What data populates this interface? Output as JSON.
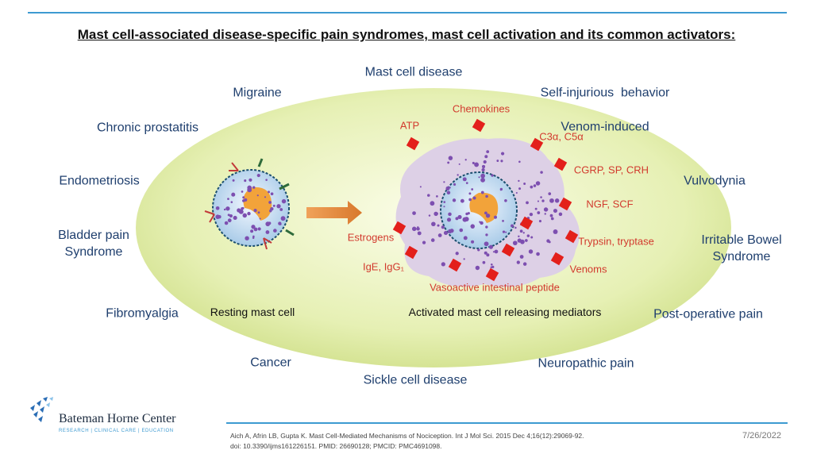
{
  "title": "Mast cell-associated disease-specific pain syndromes, mast cell activation and its common activators:",
  "syndromes": [
    "Mast cell disease",
    "Migraine",
    "Self-injurious  behavior",
    "Chronic prostatitis",
    "Venom-induced",
    "Endometriosis",
    "Vulvodynia",
    "Bladder pain\nSyndrome",
    "Irritable Bowel\nSyndrome",
    "Fibromyalgia",
    "Post-operative pain",
    "Cancer",
    "Neuropathic pain",
    "Sickle cell disease"
  ],
  "mediators": [
    "ATP",
    "Chemokines",
    "C3α, C5α",
    "CGRP, SP, CRH",
    "NGF, SCF",
    "Trypsin, tryptase",
    "Venoms",
    "Vasoactive intestinal peptide",
    "Estrogens",
    "IgE, IgG₁"
  ],
  "captions": {
    "resting": "Resting mast cell",
    "activated": "Activated mast cell releasing mediators"
  },
  "colors": {
    "accent": "#3d9ad1",
    "ellipse": "#e3eeb0",
    "mediator": "#d23a2e",
    "syndrome": "#1f3f6e"
  },
  "footer": {
    "logo": {
      "name": "Bateman Horne Center",
      "tagline": "RESEARCH | CLINICAL CARE | EDUCATION"
    },
    "citation_line1": "Aich A, Afrin LB, Gupta K. Mast Cell-Mediated Mechanisms of Nociception. Int J Mol Sci. 2015 Dec 4;16(12):29069-92.",
    "citation_line2": "doi: 10.3390/ijms161226151. PMID: 26690128; PMCID: PMC4691098.",
    "date": "7/26/2022"
  }
}
